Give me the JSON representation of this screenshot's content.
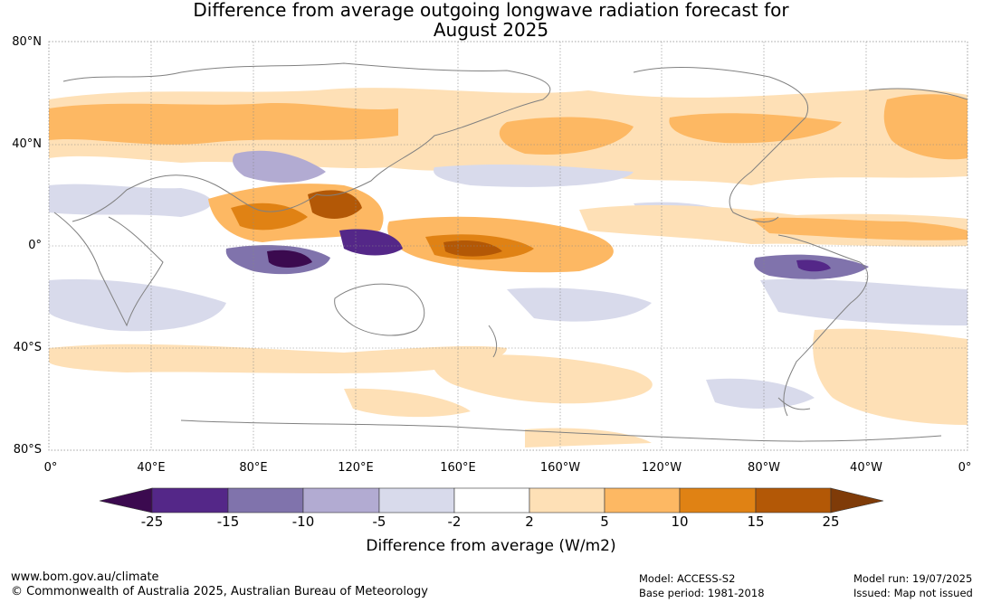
{
  "title_line1": "Difference from average outgoing longwave radiation forecast for",
  "title_line2": "August 2025",
  "lat_labels": [
    "80°N",
    "40°N",
    "0°",
    "40°S",
    "80°S"
  ],
  "lon_labels": [
    "0°",
    "40°E",
    "80°E",
    "120°E",
    "160°E",
    "160°W",
    "120°W",
    "80°W",
    "40°W",
    "0°"
  ],
  "legend": {
    "ticks": [
      "-25",
      "-15",
      "-10",
      "-5",
      "-2",
      "2",
      "5",
      "10",
      "15",
      "25"
    ],
    "colors": [
      "#3b0a4f",
      "#542788",
      "#8073ac",
      "#b2abd2",
      "#d8daeb",
      "#ffffff",
      "#fee0b6",
      "#fdb863",
      "#e08214",
      "#b35806",
      "#7f3b08"
    ],
    "label": "Difference from average (W/m2)"
  },
  "footer": {
    "url": "www.bom.gov.au/climate",
    "copyright": "© Commonwealth of Australia 2025, Australian Bureau of Meteorology",
    "model": "Model: ACCESS-S2",
    "base_period": "Base period: 1981-2018",
    "model_run": "Model run: 19/07/2025",
    "issued": "Issued: Map not issued"
  }
}
